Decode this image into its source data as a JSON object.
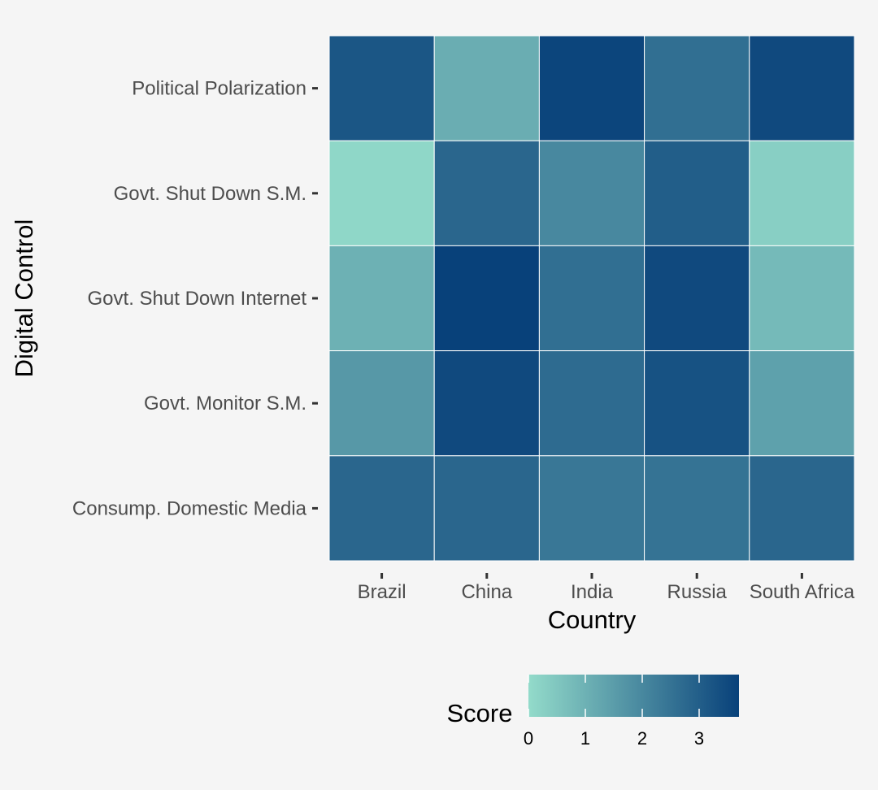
{
  "chart_data": {
    "type": "heatmap",
    "xlabel": "Country",
    "ylabel": "Digital Control",
    "x_categories": [
      "Brazil",
      "China",
      "India",
      "Russia",
      "South Africa"
    ],
    "y_categories": [
      "Political Polarization",
      "Govt. Shut Down S.M.",
      "Govt. Shut Down Internet",
      "Govt. Monitor S.M.",
      "Consump. Domestic Media"
    ],
    "values": [
      [
        3.2,
        1.1,
        3.6,
        2.6,
        3.5
      ],
      [
        0.1,
        2.8,
        2.0,
        3.0,
        0.3
      ],
      [
        1.0,
        3.7,
        2.6,
        3.5,
        0.8
      ],
      [
        1.6,
        3.5,
        2.7,
        3.3,
        1.4
      ],
      [
        2.8,
        2.8,
        2.4,
        2.5,
        2.8
      ]
    ],
    "legend": {
      "title": "Score",
      "ticks": [
        0,
        1,
        2,
        3
      ],
      "range": [
        0,
        3.7
      ],
      "low_color": "#93dbca",
      "high_color": "#08417a",
      "position": "bottom"
    }
  }
}
